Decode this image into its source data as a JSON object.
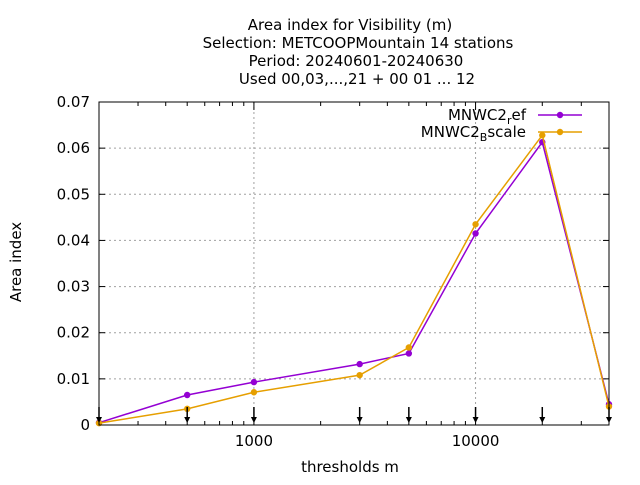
{
  "chart_data": {
    "type": "line",
    "title_lines": [
      "Area index  for Visibility (m)",
      "Selection: METCOOPMountain      14 stations",
      "Period: 20240601-20240630",
      "Used 00,03,...,21 + 00 01 ... 12"
    ],
    "xlabel": "thresholds m",
    "ylabel": "Area index",
    "x_scale": "log",
    "xlim": [
      200,
      40000
    ],
    "ylim": [
      0,
      0.07
    ],
    "x_ticks": [
      1000,
      10000
    ],
    "x_tick_labels": [
      "1000",
      "10000"
    ],
    "y_ticks": [
      0,
      0.01,
      0.02,
      0.03,
      0.04,
      0.05,
      0.06,
      0.07
    ],
    "y_tick_labels": [
      "0",
      "0.01",
      "0.02",
      "0.03",
      "0.04",
      "0.05",
      "0.06",
      "0.07"
    ],
    "grid": true,
    "legend_position": "top-right",
    "x": [
      200,
      500,
      1000,
      3000,
      5000,
      10000,
      20000,
      40000
    ],
    "series": [
      {
        "name": "MNWC2_ref",
        "legend_main": "MNWC2",
        "legend_sub": "r",
        "legend_tail": "ef",
        "color": "#9400d3",
        "values": [
          0.0005,
          0.0065,
          0.0093,
          0.0132,
          0.0155,
          0.0415,
          0.0613,
          0.0045
        ]
      },
      {
        "name": "MNWC2_Bscale",
        "legend_main": "MNWC2",
        "legend_sub": "B",
        "legend_tail": "scale",
        "color": "#e69f00",
        "values": [
          0.0004,
          0.0035,
          0.0071,
          0.0108,
          0.0168,
          0.0435,
          0.0628,
          0.004
        ]
      }
    ]
  }
}
